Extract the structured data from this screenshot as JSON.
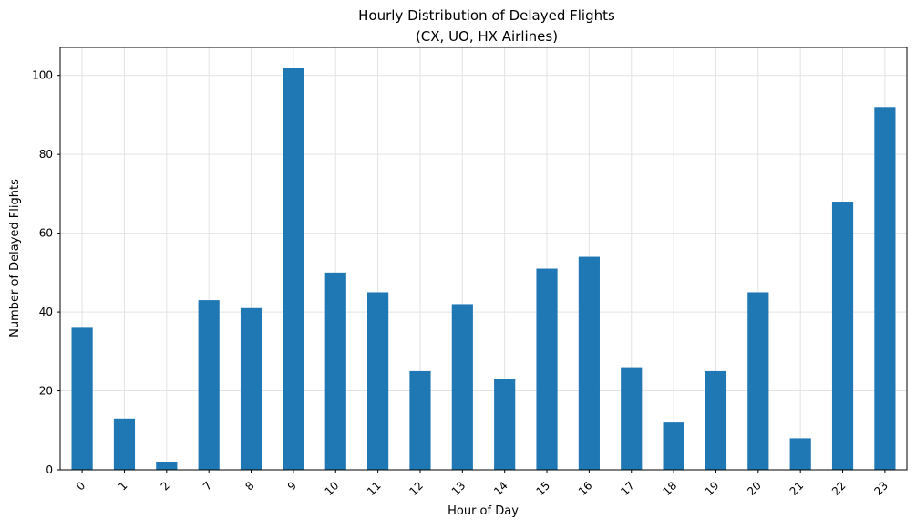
{
  "chart_data": {
    "type": "bar",
    "title": "Hourly Distribution of Delayed Flights",
    "subtitle": "(CX, UO, HX Airlines)",
    "xlabel": "Hour of Day",
    "ylabel": "Number of Delayed Flights",
    "categories": [
      "0",
      "1",
      "2",
      "7",
      "8",
      "9",
      "10",
      "11",
      "12",
      "13",
      "14",
      "15",
      "16",
      "17",
      "18",
      "19",
      "20",
      "21",
      "22",
      "23"
    ],
    "values": [
      36,
      13,
      2,
      43,
      41,
      102,
      50,
      45,
      25,
      42,
      23,
      51,
      54,
      26,
      12,
      25,
      45,
      8,
      68,
      92
    ],
    "ylim": [
      0,
      107.1
    ],
    "yticks": [
      0,
      20,
      40,
      60,
      80,
      100
    ],
    "grid": true,
    "bar_color": "#1f77b4",
    "x_tick_rotation_deg": 45
  }
}
